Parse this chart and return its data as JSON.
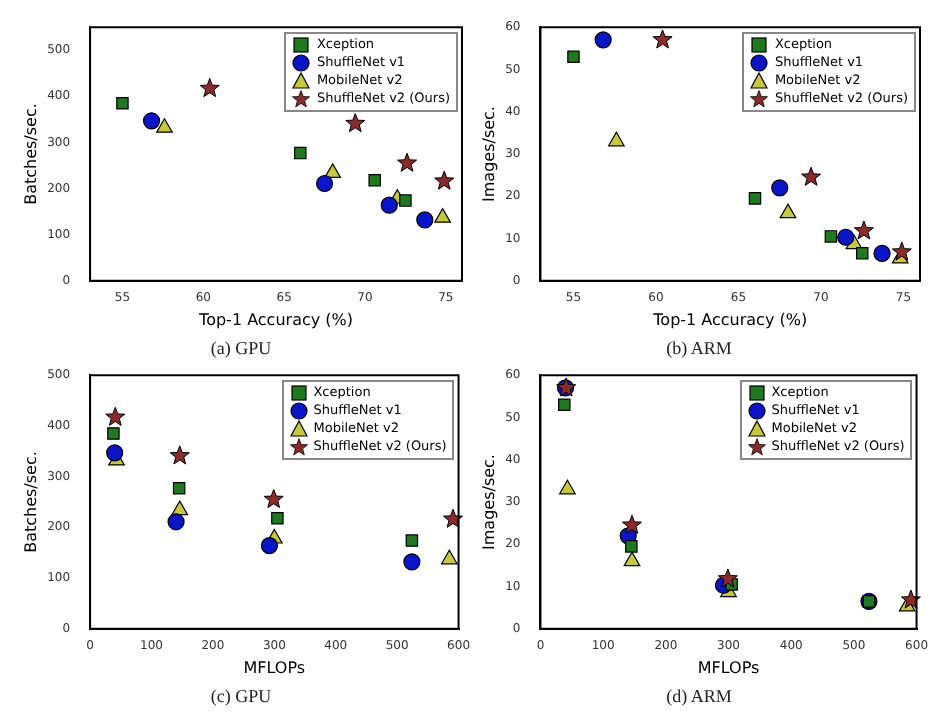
{
  "chart_data": [
    {
      "type": "scatter",
      "title": "(a) GPU",
      "xlabel": "Top-1 Accuracy (%)",
      "ylabel": "Batches/sec.",
      "xlim": [
        53,
        76
      ],
      "xticks": [
        55,
        60,
        65,
        70,
        75
      ],
      "ylim": [
        0,
        550
      ],
      "yticks": [
        0,
        100,
        200,
        300,
        400,
        500
      ],
      "grid": false,
      "legend": "top right",
      "series": [
        {
          "name": "Xception",
          "color": "#1f7a1f",
          "marker": "square",
          "x": [
            55.0,
            66.0,
            70.6,
            72.5
          ],
          "values": [
            385,
            277,
            218,
            174
          ]
        },
        {
          "name": "ShuffleNet v1",
          "color": "#0a14c8",
          "marker": "circle",
          "x": [
            56.8,
            67.5,
            71.5,
            73.7
          ],
          "values": [
            347,
            211,
            164,
            132
          ]
        },
        {
          "name": "MobileNet v2",
          "color": "#c8c83c",
          "marker": "triangle",
          "x": [
            57.6,
            68.0,
            72.0,
            74.8
          ],
          "values": [
            332,
            234,
            178,
            137
          ]
        },
        {
          "name": "ShuffleNet v2 (Ours)",
          "color": "#8b2a2a",
          "marker": "star",
          "x": [
            60.4,
            69.4,
            72.6,
            74.9
          ],
          "values": [
            417,
            341,
            255,
            216
          ]
        }
      ]
    },
    {
      "type": "scatter",
      "title": "(b) ARM",
      "xlabel": "Top-1 Accuracy (%)",
      "ylabel": "Images/sec.",
      "xlim": [
        53,
        76
      ],
      "xticks": [
        55,
        60,
        65,
        70,
        75
      ],
      "ylim": [
        0,
        60
      ],
      "yticks": [
        0,
        10,
        20,
        30,
        40,
        50,
        60
      ],
      "grid": false,
      "legend": "top right",
      "series": [
        {
          "name": "Xception",
          "color": "#1f7a1f",
          "marker": "square",
          "x": [
            55.0,
            66.0,
            70.6,
            72.5
          ],
          "values": [
            53,
            19.5,
            10.5,
            6.5
          ]
        },
        {
          "name": "ShuffleNet v1",
          "color": "#0a14c8",
          "marker": "circle",
          "x": [
            56.8,
            67.5,
            71.5,
            73.7
          ],
          "values": [
            57,
            22,
            10.3,
            6.5
          ]
        },
        {
          "name": "MobileNet v2",
          "color": "#c8c83c",
          "marker": "triangle",
          "x": [
            57.6,
            68.0,
            72.0,
            74.8
          ],
          "values": [
            33,
            16,
            8.7,
            5.3
          ]
        },
        {
          "name": "ShuffleNet v2 (Ours)",
          "color": "#8b2a2a",
          "marker": "star",
          "x": [
            60.4,
            69.4,
            72.6,
            74.9
          ],
          "values": [
            57,
            24.5,
            11.8,
            6.8
          ]
        }
      ]
    },
    {
      "type": "scatter",
      "title": "(c) GPU",
      "xlabel": "MFLOPs",
      "ylabel": "Batches/sec.",
      "xlim": [
        0,
        600
      ],
      "xticks": [
        0,
        100,
        200,
        300,
        400,
        500,
        600
      ],
      "ylim": [
        0,
        500
      ],
      "yticks": [
        0,
        100,
        200,
        300,
        400,
        500
      ],
      "grid": false,
      "legend": "top right",
      "series": [
        {
          "name": "Xception",
          "color": "#1f7a1f",
          "marker": "square",
          "x": [
            38,
            145,
            305,
            524
          ],
          "values": [
            385,
            277,
            218,
            174
          ]
        },
        {
          "name": "ShuffleNet v1",
          "color": "#0a14c8",
          "marker": "circle",
          "x": [
            40,
            140,
            292,
            524
          ],
          "values": [
            347,
            211,
            164,
            132
          ]
        },
        {
          "name": "MobileNet v2",
          "color": "#c8c83c",
          "marker": "triangle",
          "x": [
            43,
            146,
            300,
            585
          ],
          "values": [
            332,
            234,
            178,
            137
          ]
        },
        {
          "name": "ShuffleNet v2 (Ours)",
          "color": "#8b2a2a",
          "marker": "star",
          "x": [
            41,
            146,
            299,
            591
          ],
          "values": [
            417,
            341,
            255,
            216
          ]
        }
      ]
    },
    {
      "type": "scatter",
      "title": "(d) ARM",
      "xlabel": "MFLOPs",
      "ylabel": "Images/sec.",
      "xlim": [
        0,
        600
      ],
      "xticks": [
        0,
        100,
        200,
        300,
        400,
        500,
        600
      ],
      "ylim": [
        0,
        60
      ],
      "yticks": [
        0,
        10,
        20,
        30,
        40,
        50,
        60
      ],
      "grid": false,
      "legend": "top right",
      "series": [
        {
          "name": "Xception",
          "color": "#1f7a1f",
          "marker": "square",
          "x": [
            38,
            145,
            305,
            524
          ],
          "values": [
            53,
            19.5,
            10.5,
            6.5
          ]
        },
        {
          "name": "ShuffleNet v1",
          "color": "#0a14c8",
          "marker": "circle",
          "x": [
            40,
            140,
            292,
            524
          ],
          "values": [
            57,
            22,
            10.3,
            6.5
          ]
        },
        {
          "name": "MobileNet v2",
          "color": "#c8c83c",
          "marker": "triangle",
          "x": [
            43,
            146,
            300,
            585
          ],
          "values": [
            33,
            16,
            8.7,
            5.3
          ]
        },
        {
          "name": "ShuffleNet v2 (Ours)",
          "color": "#8b2a2a",
          "marker": "star",
          "x": [
            41,
            146,
            299,
            591
          ],
          "values": [
            57,
            24.5,
            11.8,
            6.8
          ]
        }
      ]
    }
  ]
}
